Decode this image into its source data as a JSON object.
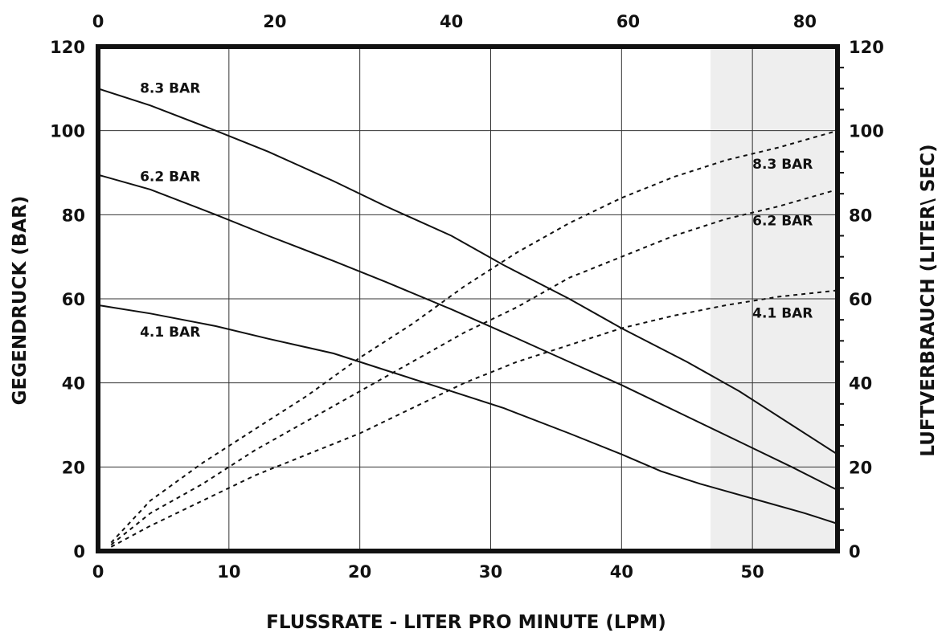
{
  "chart_data": {
    "type": "line",
    "title": "",
    "xlabel": "FLUSSRATE - LITER PRO MINUTE (LPM)",
    "ylabel_left": "GEGENDRUCK  (BAR)",
    "ylabel_right": "LUFTVERBRAUCH  (LITER\\ SEC)",
    "x_ticks": [
      "0",
      "10",
      "20",
      "30",
      "40",
      "50"
    ],
    "x_top_ticks": [
      "0",
      "20",
      "40",
      "60",
      "80"
    ],
    "y_ticks": [
      "0",
      "20",
      "40",
      "60",
      "80",
      "100",
      "120"
    ],
    "y_right_ticks": [
      "0",
      "20",
      "40",
      "60",
      "80",
      "100",
      "120"
    ],
    "xlim": [
      0,
      56.5
    ],
    "ylim": [
      0,
      120
    ],
    "x_top_lim": [
      0,
      83.7
    ],
    "y_right_lim": [
      0,
      120
    ],
    "grid": true,
    "shaded_x_range": [
      46.8,
      56.5
    ],
    "colors": {
      "shade": "#eeeeee",
      "line": "#111111",
      "frame": "#111111"
    },
    "series": [
      {
        "name": "8.3 BAR",
        "style": "solid",
        "axis": "left",
        "x": [
          0,
          4,
          9,
          13,
          18,
          22,
          27,
          31,
          36,
          40,
          45,
          49,
          53,
          56.5
        ],
        "y": [
          110,
          106,
          100,
          95,
          88,
          82,
          75,
          68,
          60,
          53,
          45,
          38,
          30,
          23
        ]
      },
      {
        "name": "6.2 BAR",
        "style": "solid",
        "axis": "left",
        "x": [
          0,
          4,
          9,
          13,
          18,
          22,
          27,
          31,
          36,
          40,
          45,
          49,
          53,
          56.5
        ],
        "y": [
          89.5,
          86,
          80,
          75,
          69,
          64,
          57.5,
          52,
          45,
          39.5,
          32,
          26,
          20,
          14.5
        ]
      },
      {
        "name": "4.1 BAR",
        "style": "solid",
        "axis": "left",
        "x": [
          0,
          4,
          9,
          13,
          18,
          22,
          27,
          31,
          36,
          40,
          43,
          46,
          50,
          54,
          56.5
        ],
        "y": [
          58.5,
          56.5,
          53.5,
          50.5,
          47,
          43,
          38,
          34,
          28,
          23,
          19,
          16,
          12.5,
          9,
          6.5
        ]
      },
      {
        "name": "8.3 BAR",
        "style": "dashed",
        "axis": "right",
        "x": [
          1,
          4,
          8,
          12,
          16,
          20,
          24,
          28,
          32,
          36,
          40,
          44,
          48,
          52,
          56.5
        ],
        "y": [
          2,
          12,
          21,
          29,
          37,
          46,
          54,
          63,
          71,
          78,
          84,
          89,
          93,
          96,
          100
        ]
      },
      {
        "name": "6.2 BAR",
        "style": "dashed",
        "axis": "right",
        "x": [
          1,
          4,
          8,
          12,
          16,
          20,
          24,
          28,
          32,
          36,
          40,
          44,
          48,
          52,
          56.5
        ],
        "y": [
          1.5,
          9,
          16,
          24,
          31,
          38,
          45,
          52,
          58,
          65,
          70,
          75,
          79,
          82,
          86
        ]
      },
      {
        "name": "4.1 BAR",
        "style": "dashed",
        "axis": "right",
        "x": [
          1,
          4,
          8,
          12,
          16,
          20,
          24,
          28,
          32,
          36,
          40,
          44,
          48,
          52,
          56.5
        ],
        "y": [
          1,
          6,
          12,
          18,
          23,
          28,
          34,
          40,
          45,
          49,
          53,
          56,
          58.5,
          60.5,
          62
        ]
      }
    ],
    "curve_labels": [
      {
        "text": "8.3 BAR",
        "x": 3.2,
        "y": 109
      },
      {
        "text": "6.2 BAR",
        "x": 3.2,
        "y": 88
      },
      {
        "text": "4.1 BAR",
        "x": 3.2,
        "y": 51
      },
      {
        "text": "8.3 BAR",
        "x": 50,
        "y": 91
      },
      {
        "text": "6.2 BAR",
        "x": 50,
        "y": 77.5
      },
      {
        "text": "4.1 BAR",
        "x": 50,
        "y": 55.5
      }
    ]
  }
}
